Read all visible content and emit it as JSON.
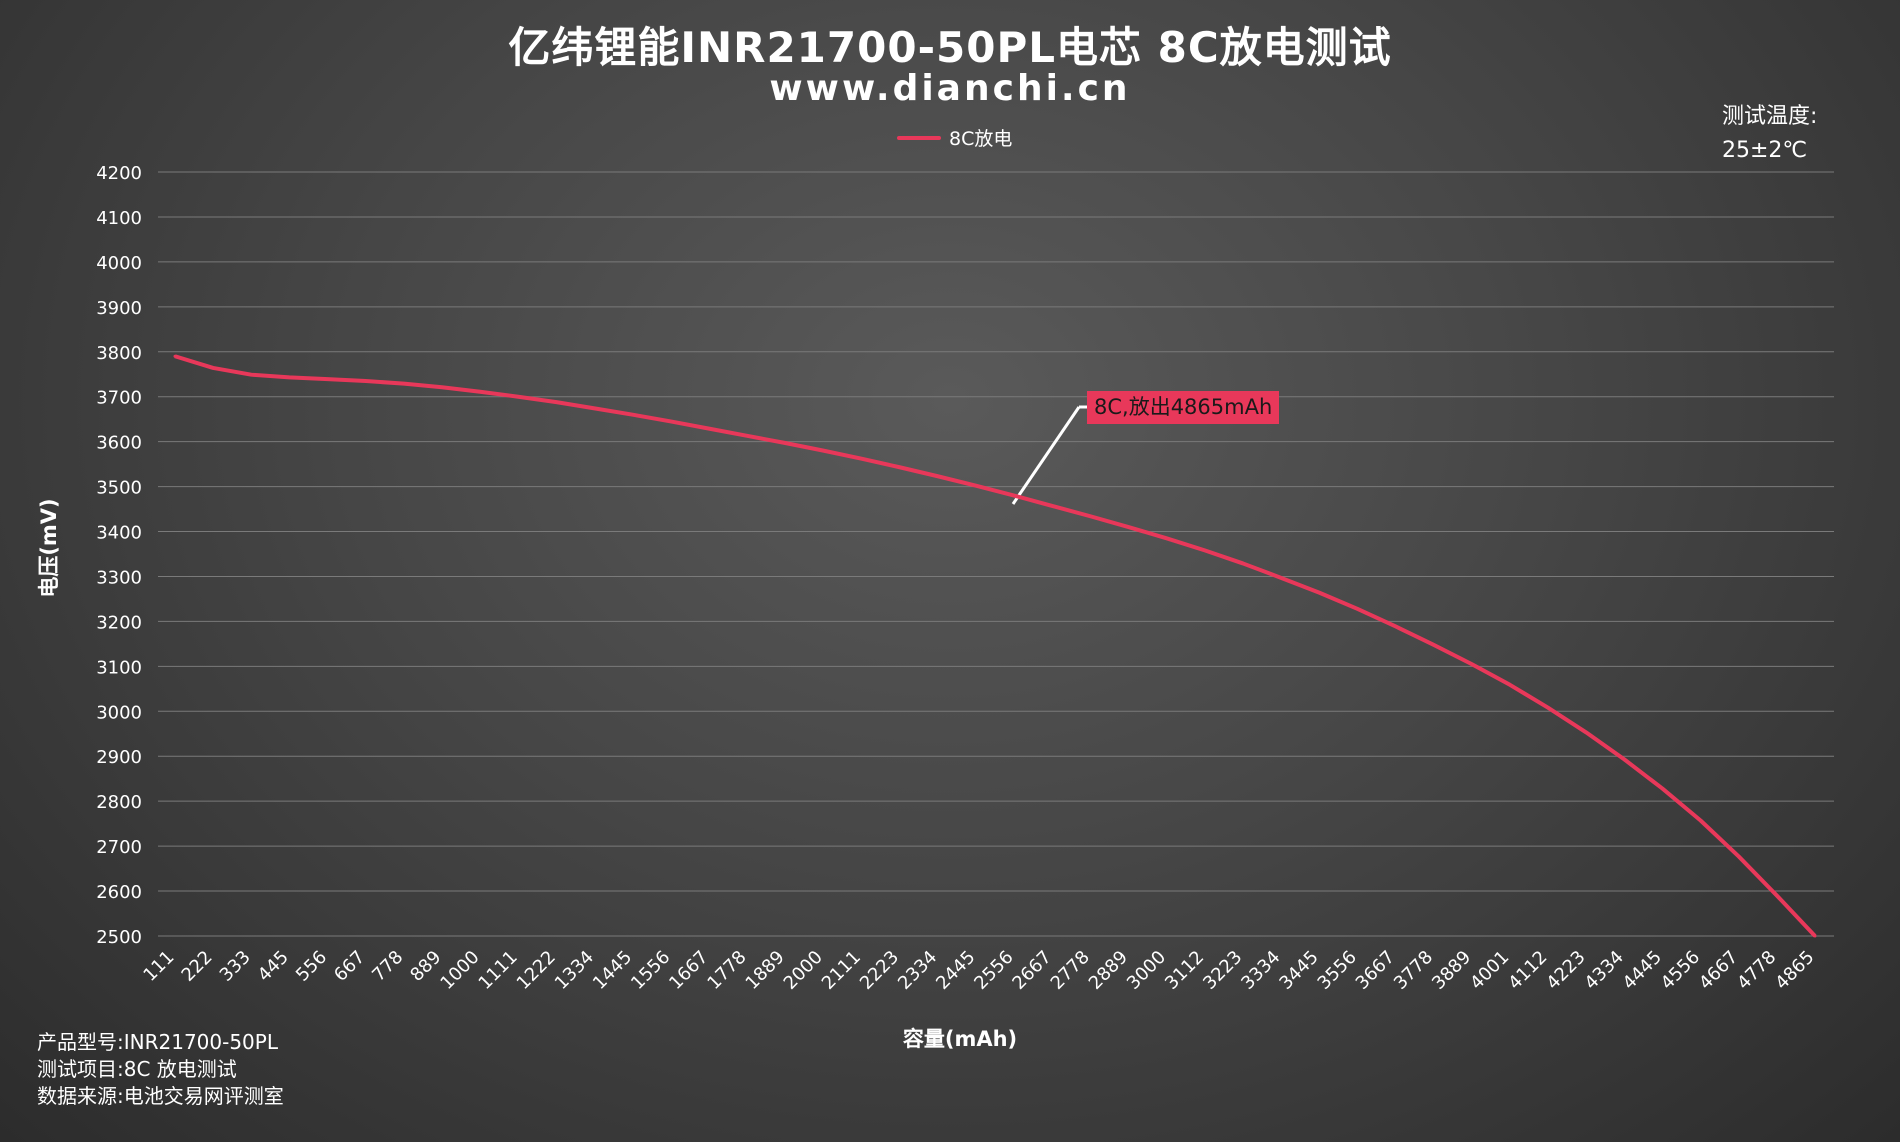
{
  "title": "亿纬锂能INR21700-50PL电芯 8C放电测试",
  "subtitle": "www.dianchi.cn",
  "temperature_label": "测试温度:",
  "temperature_value": "25±2℃",
  "footer": {
    "model": "产品型号:INR21700-50PL",
    "item": "测试项目:8C 放电测试",
    "source": "数据来源:电池交易网评测室"
  },
  "annotation": "8C,放出4865mAh",
  "colors": {
    "line": "#e8385a",
    "grid": "#7a7a7a",
    "text": "#ffffff"
  },
  "chart_data": {
    "type": "line",
    "title": "亿纬锂能INR21700-50PL电芯 8C放电测试",
    "xlabel": "容量(mAh)",
    "ylabel": "电压(mV)",
    "ylim": [
      2500,
      4200
    ],
    "yticks": [
      4200,
      4100,
      4000,
      3900,
      3800,
      3700,
      3600,
      3500,
      3400,
      3300,
      3200,
      3100,
      3000,
      2900,
      2800,
      2700,
      2600,
      2500
    ],
    "grid": true,
    "legend_position": "top-center",
    "categories": [
      "111",
      "222",
      "333",
      "445",
      "556",
      "667",
      "778",
      "889",
      "1000",
      "1111",
      "1222",
      "1334",
      "1445",
      "1556",
      "1667",
      "1778",
      "1889",
      "2000",
      "2111",
      "2223",
      "2334",
      "2445",
      "2556",
      "2667",
      "2778",
      "2889",
      "3000",
      "3112",
      "3223",
      "3334",
      "3445",
      "3556",
      "3667",
      "3778",
      "3889",
      "4001",
      "4112",
      "4223",
      "4334",
      "4445",
      "4556",
      "4667",
      "4778",
      "4865"
    ],
    "series": [
      {
        "name": "8C放电",
        "values": [
          3790,
          3764,
          3749,
          3743,
          3739,
          3735,
          3729,
          3721,
          3711,
          3700,
          3688,
          3674,
          3660,
          3645,
          3629,
          3613,
          3597,
          3580,
          3562,
          3543,
          3523,
          3502,
          3480,
          3457,
          3434,
          3410,
          3385,
          3358,
          3329,
          3297,
          3264,
          3228,
          3189,
          3148,
          3105,
          3059,
          3008,
          2953,
          2893,
          2828,
          2757,
          2677,
          2590,
          2500
        ]
      }
    ]
  }
}
